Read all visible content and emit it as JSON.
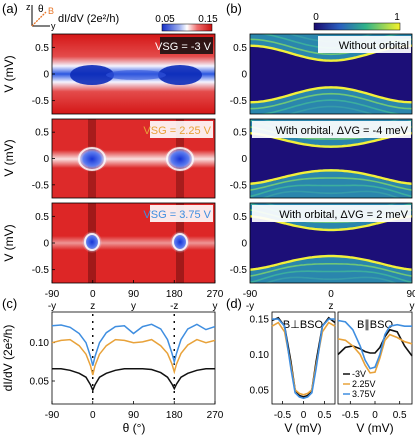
{
  "panel_labels": {
    "a": "(a)",
    "b": "(b)",
    "c": "(c)",
    "d": "(d)"
  },
  "axes_glyph": {
    "z": "z",
    "theta": "θ",
    "B": "B",
    "y": "y"
  },
  "colorbar_a": {
    "label": "dI/dV (2e²/h)",
    "min": "0.05",
    "max": "0.15"
  },
  "colorbar_b": {
    "min": "0",
    "max": "1"
  },
  "panel_a": {
    "ylabel": "V (mV)",
    "yticks": [
      "0.5",
      "0",
      "-0.5"
    ],
    "xticks": [
      "-90",
      "0",
      "90",
      "180",
      "270"
    ],
    "xdirs": [
      "-y",
      "z",
      "y",
      "-z",
      "y"
    ],
    "maps": [
      {
        "label": "VSG = -3 V"
      },
      {
        "label": "VSG = 2.25 V"
      },
      {
        "label": "VSG = 3.75 V"
      }
    ]
  },
  "panel_b": {
    "yticks": [
      "0.5",
      "0",
      "-0.5"
    ],
    "xticks": [
      "-90",
      "0",
      "90"
    ],
    "xdirs": [
      "-y",
      "z",
      "y"
    ],
    "maps": [
      {
        "label": "Without orbital"
      },
      {
        "label": "With orbital, ΔVG = -4 meV"
      },
      {
        "label": "With orbital, ΔVG = 2 meV"
      }
    ]
  },
  "panel_c": {
    "ylabel": "dI/dV (2e²/h)",
    "xlabel": "θ (°)",
    "yticks": [
      "0.10",
      "0.05"
    ],
    "xticks": [
      "-90",
      "0",
      "90",
      "180",
      "270"
    ]
  },
  "panel_d": {
    "left_title": "B⊥BSO",
    "right_title": "B∥BSO",
    "xlabel": "V (mV)",
    "yticks": [
      "0.15",
      "0.10",
      "0.05"
    ],
    "xticks": [
      "-0.5",
      "0",
      "0.5"
    ],
    "legend": [
      "-3V",
      "2.25V",
      "3.75V"
    ]
  },
  "colors": {
    "black": "#111111",
    "orange": "#e8a23a",
    "blue": "#3f8ee0",
    "tick_white": "#ffffff"
  },
  "chart_data": [
    {
      "type": "line",
      "xlabel": "θ (°)",
      "ylabel": "dI/dV (2e²/h)",
      "xlim": [
        -90,
        270
      ],
      "ylim": [
        0.02,
        0.14
      ],
      "x": [
        -90,
        -70,
        -50,
        -30,
        -15,
        -5,
        0,
        5,
        15,
        30,
        50,
        70,
        90,
        110,
        130,
        150,
        165,
        175,
        180,
        185,
        195,
        210,
        230,
        250,
        270
      ],
      "series": [
        {
          "name": "-3V",
          "values": [
            0.066,
            0.066,
            0.064,
            0.06,
            0.055,
            0.045,
            0.038,
            0.045,
            0.055,
            0.06,
            0.064,
            0.066,
            0.066,
            0.066,
            0.065,
            0.061,
            0.055,
            0.046,
            0.04,
            0.046,
            0.055,
            0.06,
            0.064,
            0.066,
            0.066
          ]
        },
        {
          "name": "2.25V",
          "values": [
            0.1,
            0.103,
            0.104,
            0.096,
            0.085,
            0.07,
            0.058,
            0.07,
            0.085,
            0.096,
            0.104,
            0.103,
            0.1,
            0.101,
            0.104,
            0.096,
            0.086,
            0.072,
            0.062,
            0.072,
            0.086,
            0.097,
            0.104,
            0.1,
            0.103
          ]
        },
        {
          "name": "3.75V",
          "values": [
            0.122,
            0.123,
            0.12,
            0.112,
            0.1,
            0.082,
            0.07,
            0.082,
            0.1,
            0.113,
            0.121,
            0.122,
            0.112,
            0.121,
            0.124,
            0.118,
            0.104,
            0.086,
            0.075,
            0.086,
            0.104,
            0.118,
            0.124,
            0.117,
            0.121
          ]
        }
      ]
    },
    {
      "type": "line",
      "title": "B⊥BSO",
      "xlabel": "V (mV)",
      "ylim": [
        0.03,
        0.16
      ],
      "xlim": [
        -0.75,
        0.75
      ],
      "x": [
        -0.75,
        -0.6,
        -0.45,
        -0.3,
        -0.2,
        -0.1,
        0,
        0.1,
        0.2,
        0.3,
        0.45,
        0.6,
        0.75
      ],
      "series": [
        {
          "name": "-3V",
          "values": [
            0.148,
            0.152,
            0.14,
            0.09,
            0.05,
            0.042,
            0.04,
            0.042,
            0.05,
            0.09,
            0.14,
            0.152,
            0.145
          ]
        },
        {
          "name": "2.25V",
          "values": [
            0.14,
            0.145,
            0.132,
            0.085,
            0.05,
            0.045,
            0.043,
            0.045,
            0.05,
            0.085,
            0.132,
            0.145,
            0.14
          ]
        },
        {
          "name": "3.75V",
          "values": [
            0.15,
            0.15,
            0.14,
            0.08,
            0.046,
            0.04,
            0.038,
            0.04,
            0.046,
            0.08,
            0.14,
            0.15,
            0.15
          ]
        }
      ]
    },
    {
      "type": "line",
      "title": "B∥BSO",
      "xlabel": "V (mV)",
      "ylim": [
        0.03,
        0.16
      ],
      "xlim": [
        -0.75,
        0.75
      ],
      "x": [
        -0.75,
        -0.6,
        -0.45,
        -0.3,
        -0.2,
        -0.1,
        0,
        0.1,
        0.2,
        0.3,
        0.45,
        0.6,
        0.75
      ],
      "series": [
        {
          "name": "-3V",
          "values": [
            0.1,
            0.11,
            0.112,
            0.108,
            0.104,
            0.102,
            0.102,
            0.11,
            0.125,
            0.135,
            0.132,
            0.112,
            0.098
          ]
        },
        {
          "name": "2.25V",
          "values": [
            0.122,
            0.12,
            0.112,
            0.1,
            0.085,
            0.074,
            0.075,
            0.095,
            0.12,
            0.128,
            0.124,
            0.118,
            0.115
          ]
        },
        {
          "name": "3.75V",
          "values": [
            0.148,
            0.146,
            0.135,
            0.112,
            0.092,
            0.08,
            0.082,
            0.1,
            0.128,
            0.14,
            0.142,
            0.14,
            0.14
          ]
        }
      ]
    }
  ]
}
